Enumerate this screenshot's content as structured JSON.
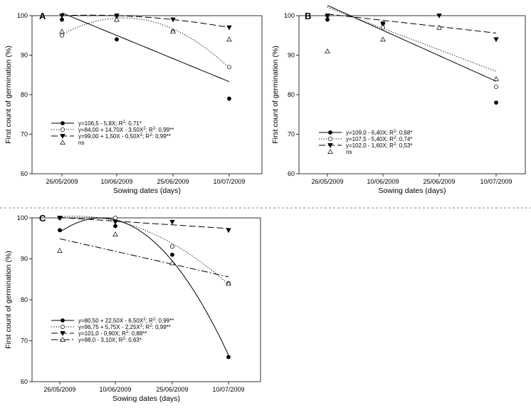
{
  "figure": {
    "divider_color": "#888888"
  },
  "chart_data": [
    {
      "panel": "A",
      "type": "scatter",
      "categories": [
        "26/05/2009",
        "10/06/2009",
        "25/06/2009",
        "10/07/2009"
      ],
      "xlabel": "Sowing dates (days)",
      "ylabel": "First count of germination  (%)",
      "ylim": [
        60,
        100
      ],
      "yticks": [
        60,
        70,
        80,
        90,
        100
      ],
      "grid": false,
      "legend_position": "lower-left",
      "series": [
        {
          "marker": "filled-circle",
          "line": "solid",
          "values": [
            99,
            94,
            null,
            79
          ],
          "fit": {
            "type": "linear",
            "a": 106.5,
            "b": -5.8,
            "c": 0
          },
          "equation": "y=106,5 - 5,8X; R²: 0,71*"
        },
        {
          "marker": "open-circle",
          "line": "dotted",
          "values": [
            95,
            100,
            96,
            87
          ],
          "fit": {
            "type": "quadratic",
            "a": 84.0,
            "b": 14.7,
            "c": -3.5
          },
          "equation": "y=84,00 + 14,70X - 3,50X²; R²: 0,99**"
        },
        {
          "marker": "filled-triangle-down",
          "line": "dashed",
          "values": [
            100,
            100,
            99,
            97
          ],
          "fit": {
            "type": "quadratic",
            "a": 99.0,
            "b": 1.5,
            "c": -0.5
          },
          "equation": "y=99,00 + 1,50X - 0,50X²; R²: 0,99**"
        },
        {
          "marker": "open-triangle-up",
          "line": "none",
          "values": [
            96,
            99,
            96,
            94
          ],
          "fit": null,
          "equation": "ns"
        }
      ]
    },
    {
      "panel": "B",
      "type": "scatter",
      "categories": [
        "26/05/2009",
        "10/06/2009",
        "25/06/2009",
        "10/07/2009"
      ],
      "xlabel": "Sowing dates (days)",
      "ylabel": "First count of germination  (%)",
      "ylim": [
        60,
        100
      ],
      "yticks": [
        60,
        70,
        80,
        90,
        100
      ],
      "grid": false,
      "legend_position": "lower-left",
      "series": [
        {
          "marker": "filled-circle",
          "line": "solid",
          "values": [
            99,
            98,
            null,
            78
          ],
          "fit": {
            "type": "linear",
            "a": 109.0,
            "b": -6.4,
            "c": 0
          },
          "equation": "y=109,0 - 6,40X; R²: 0,68*"
        },
        {
          "marker": "open-circle",
          "line": "dotted",
          "values": [
            100,
            97,
            null,
            82
          ],
          "fit": {
            "type": "linear",
            "a": 107.5,
            "b": -5.4,
            "c": 0
          },
          "equation": "y=107,5 - 5,40X; R²: 0,74*"
        },
        {
          "marker": "filled-triangle-down",
          "line": "dashed",
          "values": [
            100,
            98,
            100,
            94
          ],
          "fit": {
            "type": "linear",
            "a": 102.0,
            "b": -1.6,
            "c": 0
          },
          "equation": "y=102,0 - 1,60X; R²: 0,53*"
        },
        {
          "marker": "open-triangle-up",
          "line": "none",
          "values": [
            91,
            94,
            97,
            84
          ],
          "fit": null,
          "equation": "ns"
        }
      ]
    },
    {
      "panel": "C",
      "type": "scatter",
      "categories": [
        "26/05/2009",
        "10/06/2009",
        "25/06/2009",
        "10/07/2009"
      ],
      "xlabel": "Sowing dates (days)",
      "ylabel": "First count of germination  (%)",
      "ylim": [
        60,
        100
      ],
      "yticks": [
        60,
        70,
        80,
        90,
        100
      ],
      "grid": false,
      "legend_position": "lower-left",
      "series": [
        {
          "marker": "filled-circle",
          "line": "solid",
          "values": [
            97,
            98,
            91,
            66
          ],
          "fit": {
            "type": "quadratic",
            "a": 80.5,
            "b": 22.5,
            "c": -6.5
          },
          "equation": "y=80,50 + 22,50X - 6,50X²; R²: 0,99**"
        },
        {
          "marker": "open-circle",
          "line": "dotted",
          "values": [
            100,
            100,
            93,
            84
          ],
          "fit": {
            "type": "quadratic",
            "a": 96.75,
            "b": 5.75,
            "c": -2.25
          },
          "equation": "y=96,75 + 5,75X - 2,25X²; R²: 0,99**"
        },
        {
          "marker": "filled-triangle-down",
          "line": "dashed",
          "values": [
            100,
            99,
            99,
            97
          ],
          "fit": {
            "type": "linear",
            "a": 101.0,
            "b": -0.9,
            "c": 0
          },
          "equation": "y=101,0 - 0,90X; R²: 0,88**"
        },
        {
          "marker": "open-triangle-up",
          "line": "dashdot",
          "values": [
            92,
            96,
            89,
            84
          ],
          "fit": {
            "type": "linear",
            "a": 98.0,
            "b": -3.1,
            "c": 0
          },
          "equation": "y=98,0 - 3,10X; R²: 0,63*"
        }
      ]
    }
  ]
}
